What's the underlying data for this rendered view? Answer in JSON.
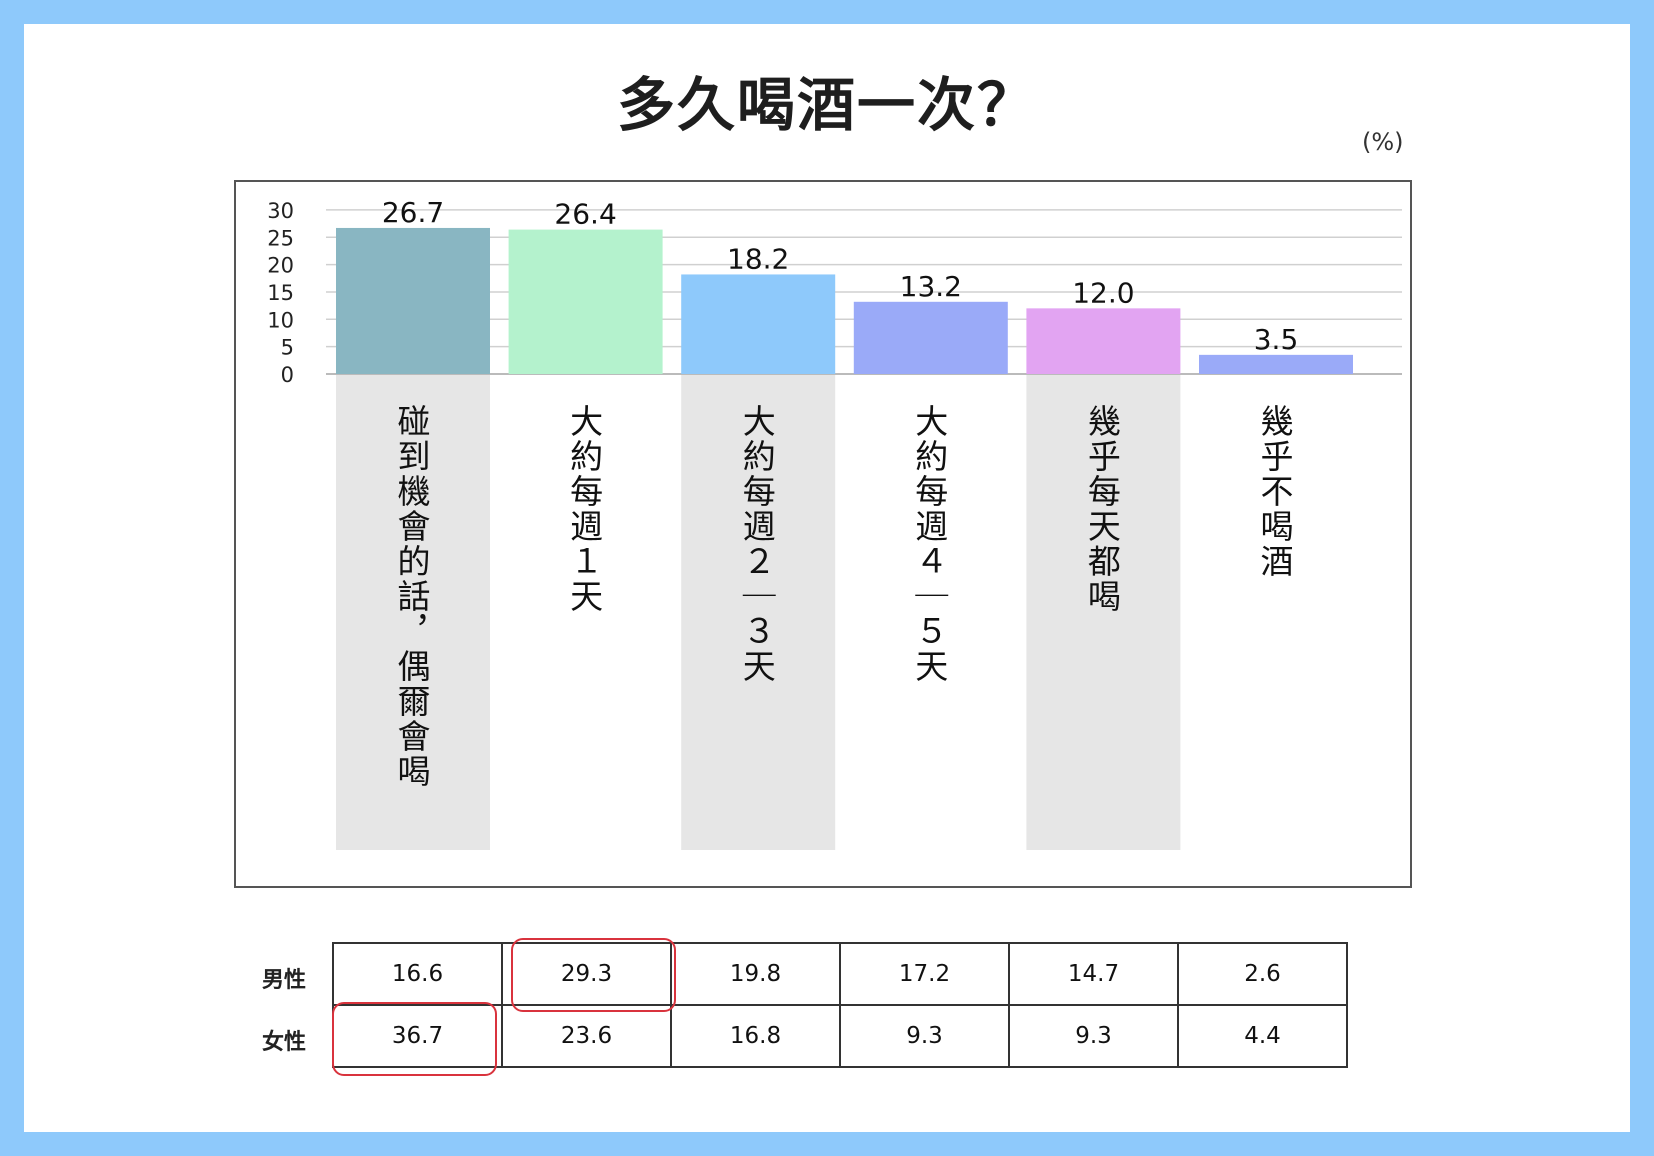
{
  "title": "多久喝酒一次？",
  "unit": "(%)",
  "chart_data": {
    "type": "bar",
    "categories": [
      "碰到機會的話，偶爾會喝",
      "大約每週1天",
      "大約每週2-3天",
      "大約每週4-5天",
      "幾乎每天都喝",
      "幾乎不喝酒"
    ],
    "vertical_labels": [
      "碰到機會的話，偶爾會喝",
      "大約每週１天",
      "大約每週２｜３天",
      "大約每週４｜５天",
      "幾乎每天都喝",
      "幾乎不喝酒"
    ],
    "values": [
      26.7,
      26.4,
      18.2,
      13.2,
      12.0,
      3.5
    ],
    "value_labels": [
      "26.7",
      "26.4",
      "18.2",
      "13.2",
      "12.0",
      "3.5"
    ],
    "yticks": [
      0,
      5,
      10,
      15,
      20,
      25,
      30
    ],
    "ylim": [
      0,
      30
    ],
    "grid": true,
    "bar_colors": [
      "#89b6c2",
      "#b4f2cd",
      "#8ec9fb",
      "#9aaaf8",
      "#e2a4f2",
      "#9aaaf8"
    ],
    "shaded_categories": [
      0,
      2,
      4
    ],
    "shade_color": "#e6e6e6"
  },
  "table": {
    "rows": [
      {
        "label": "男性",
        "values": [
          "16.6",
          "29.3",
          "19.8",
          "17.2",
          "14.7",
          "2.6"
        ]
      },
      {
        "label": "女性",
        "values": [
          "36.7",
          "23.6",
          "16.8",
          "9.3",
          "9.3",
          "4.4"
        ]
      }
    ],
    "highlighted_cells": [
      [
        0,
        1
      ],
      [
        1,
        0
      ]
    ],
    "highlight_color": "#d9333d"
  }
}
